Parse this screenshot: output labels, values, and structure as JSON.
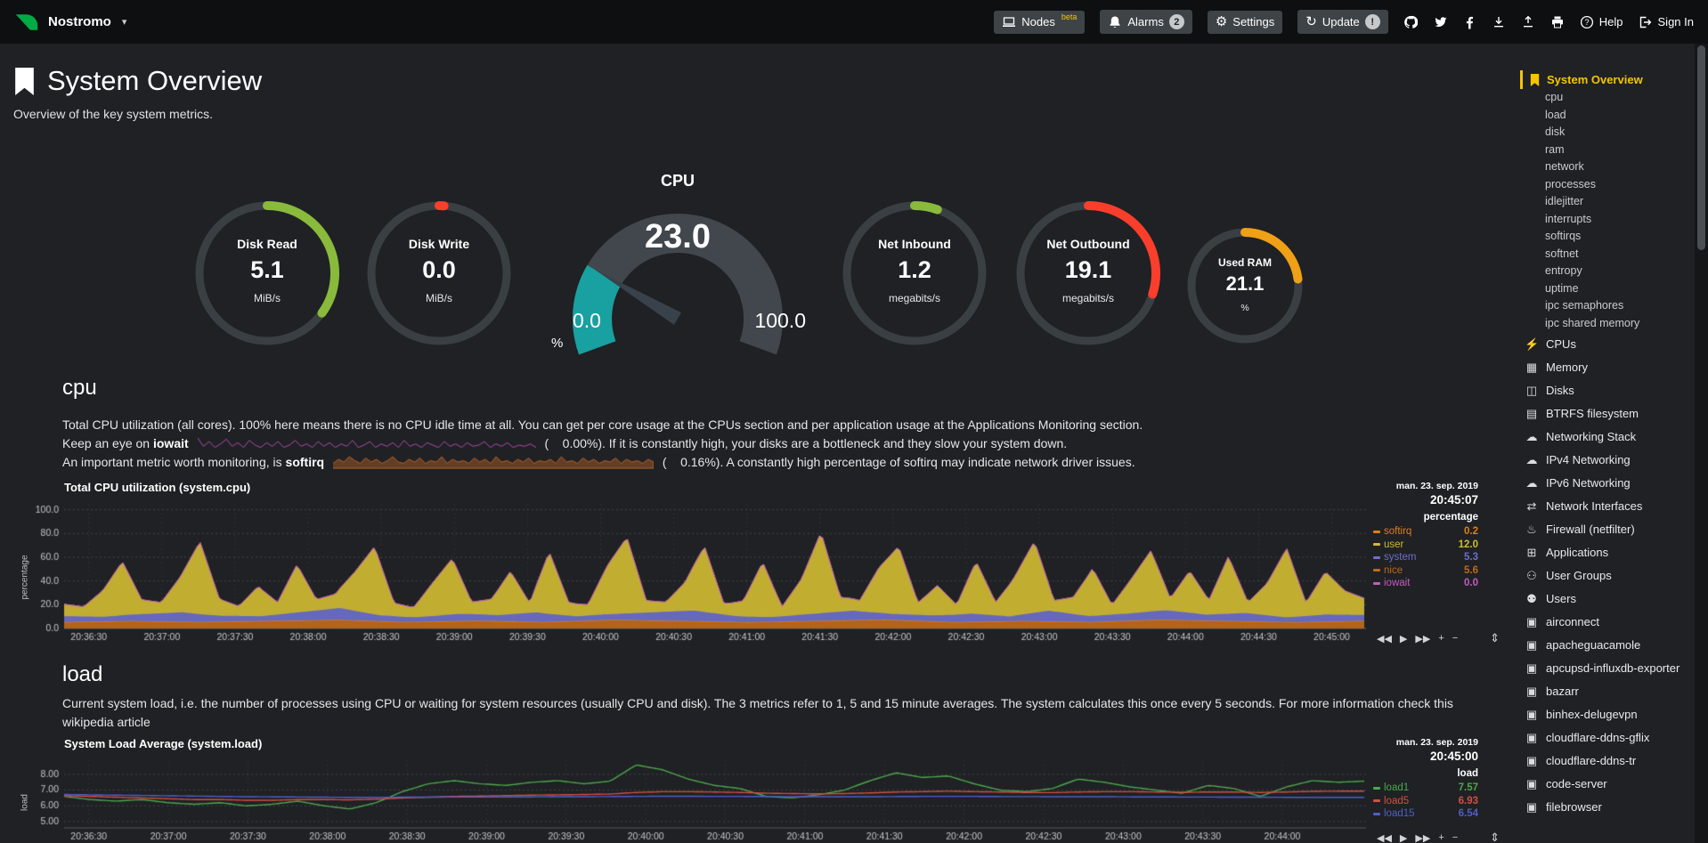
{
  "topbar": {
    "brand": "Nostromo",
    "nodes_label": "Nodes",
    "nodes_badge": "beta",
    "alarms_label": "Alarms",
    "alarms_count": "2",
    "settings_label": "Settings",
    "update_label": "Update",
    "update_badge": "!",
    "help_label": "Help",
    "signin_label": "Sign In"
  },
  "icons": {
    "caret": "▾",
    "gear": "⚙",
    "update": "↻",
    "help": "?",
    "rewind": "◀◀",
    "play": "▶",
    "forward": "▶▶",
    "plus": "+",
    "minus": "−",
    "resize": "⇕"
  },
  "icon_glyphs": {
    "bolt": "⚡",
    "memory": "▦",
    "disk": "◫",
    "folder": "▤",
    "cloud": "☁",
    "port": "⇄",
    "fire": "♨",
    "apps": "⊞",
    "users": "⚇",
    "user": "⚉",
    "cube": "▣"
  },
  "header": {
    "title": "System Overview",
    "subtitle": "Overview of the key system metrics."
  },
  "colors": {
    "accent": "#f6c500",
    "ring_track": "#3a3f43",
    "gauge_track": "#41474c",
    "needle": "#39424b"
  },
  "gauges": {
    "disk_read": {
      "title": "Disk Read",
      "value": "5.1",
      "unit": "MiB/s",
      "fraction": 0.35,
      "color": "#89ba3c"
    },
    "disk_write": {
      "title": "Disk Write",
      "value": "0.0",
      "unit": "MiB/s",
      "fraction": 0.012,
      "color": "#fa3e2c"
    },
    "cpu": {
      "title": "CPU",
      "value": "23.0",
      "min": "0.0",
      "max": "100.0",
      "unit": "%",
      "fraction": 0.23,
      "color": "#19a0a0"
    },
    "net_in": {
      "title": "Net Inbound",
      "value": "1.2",
      "unit": "megabits/s",
      "fraction": 0.055,
      "color": "#89ba3c"
    },
    "net_out": {
      "title": "Net Outbound",
      "value": "19.1",
      "unit": "megabits/s",
      "fraction": 0.3,
      "color": "#fa3e2c"
    },
    "used_ram": {
      "title": "Used RAM",
      "value": "21.1",
      "unit": "%",
      "fraction": 0.23,
      "color": "#f0a017"
    }
  },
  "cpu_section": {
    "heading": "cpu",
    "p1": "Total CPU utilization (all cores). 100% here means there is no CPU idle time at all. You can get per core usage at the CPUs section and per application usage at the Applications Monitoring section.",
    "p2_pre": "Keep an eye on",
    "p2_bold": "iowait",
    "p2_post": "(    0.00%). If it is constantly high, your disks are a bottleneck and they slow your system down.",
    "p3_pre": "An important metric worth monitoring, is",
    "p3_bold": "softirq",
    "p3_post": "(    0.16%). A constantly high percentage of softirq may indicate network driver issues."
  },
  "load_section": {
    "heading": "load",
    "p1": "Current system load, i.e. the number of processes using CPU or waiting for system resources (usually CPU and disk). The 3 metrics refer to 1, 5 and 15 minute averages. The system calculates this once every 5 seconds. For more information check this wikipedia article"
  },
  "sidebar": {
    "selected": {
      "label": "System Overview"
    },
    "sub_items": [
      "cpu",
      "load",
      "disk",
      "ram",
      "network",
      "processes",
      "idlejitter",
      "interrupts",
      "softirqs",
      "softnet",
      "entropy",
      "uptime",
      "ipc semaphores",
      "ipc shared memory"
    ],
    "sections": [
      {
        "label": "CPUs",
        "icon": "bolt"
      },
      {
        "label": "Memory",
        "icon": "memory"
      },
      {
        "label": "Disks",
        "icon": "disk"
      },
      {
        "label": "BTRFS filesystem",
        "icon": "folder"
      },
      {
        "label": "Networking Stack",
        "icon": "cloud"
      },
      {
        "label": "IPv4 Networking",
        "icon": "cloud"
      },
      {
        "label": "IPv6 Networking",
        "icon": "cloud"
      },
      {
        "label": "Network Interfaces",
        "icon": "port"
      },
      {
        "label": "Firewall (netfilter)",
        "icon": "fire"
      },
      {
        "label": "Applications",
        "icon": "apps"
      },
      {
        "label": "User Groups",
        "icon": "users"
      },
      {
        "label": "Users",
        "icon": "user"
      },
      {
        "label": "airconnect",
        "icon": "cube"
      },
      {
        "label": "apacheguacamole",
        "icon": "cube"
      },
      {
        "label": "apcupsd-influxdb-exporter",
        "icon": "cube"
      },
      {
        "label": "bazarr",
        "icon": "cube"
      },
      {
        "label": "binhex-delugevpn",
        "icon": "cube"
      },
      {
        "label": "cloudflare-ddns-gflix",
        "icon": "cube"
      },
      {
        "label": "cloudflare-ddns-tr",
        "icon": "cube"
      },
      {
        "label": "code-server",
        "icon": "cube"
      },
      {
        "label": "filebrowser",
        "icon": "cube"
      }
    ]
  },
  "sparklines": [
    {
      "name": "iowait",
      "color": "#b24cb2",
      "fill": false,
      "values": [
        0.9,
        0.2,
        0.6,
        0.1,
        0.4,
        0.8,
        0.2,
        0.5,
        0.1,
        0.7,
        0.3,
        0.1,
        0.5,
        0.2,
        0.6,
        0.1,
        0.3,
        0.7,
        0.2,
        0.4,
        0.1,
        0.6,
        0.2,
        0.5,
        0.1,
        0.4,
        0.2,
        0.7,
        0.1,
        0.3,
        0.6,
        0.1,
        0.4,
        0.2,
        0.5,
        0.1,
        0.7,
        0.2,
        0.4,
        0.1,
        0.5,
        0.3,
        0.1,
        0.6,
        0.2,
        0.4,
        0.1,
        0.5,
        0.2,
        0.3,
        0.6,
        0.1,
        0.4,
        0.2,
        0.5,
        0.1,
        0.3,
        0.2,
        0.4,
        0.1
      ]
    },
    {
      "name": "softirq",
      "color": "#b5622b",
      "fill": true,
      "values": [
        0.3,
        0.6,
        0.4,
        0.8,
        0.5,
        0.3,
        0.7,
        0.4,
        0.6,
        0.3,
        0.5,
        0.8,
        0.4,
        0.3,
        0.6,
        0.4,
        0.7,
        0.3,
        0.5,
        0.4,
        0.8,
        0.3,
        0.6,
        0.4,
        0.5,
        0.3,
        0.7,
        0.4,
        0.6,
        0.3,
        0.8,
        0.4,
        0.5,
        0.3,
        0.6,
        0.4,
        0.7,
        0.3,
        0.5,
        0.4,
        0.6,
        0.3,
        0.8,
        0.4,
        0.5,
        0.3,
        0.7,
        0.4,
        0.6,
        0.3,
        0.5,
        0.4,
        0.7,
        0.3,
        0.6,
        0.4,
        0.5,
        0.3,
        0.6,
        0.4
      ]
    }
  ],
  "chart_data": [
    {
      "id": "system.cpu",
      "type": "area",
      "title": "Total CPU utilization (system.cpu)",
      "ylabel": "percentage",
      "date": "man. 23. sep. 2019",
      "time": "20:45:07",
      "legend_header": "percentage",
      "ylim": [
        0,
        105
      ],
      "yticks": [
        0,
        20,
        40,
        60,
        80,
        100
      ],
      "ytick_labels": [
        "0.0",
        "20.0",
        "40.0",
        "60.0",
        "80.0",
        "100.0"
      ],
      "xspan": 0.975,
      "xticks": [
        "20:36:30",
        "20:37:00",
        "20:37:30",
        "20:38:00",
        "20:38:30",
        "20:39:00",
        "20:39:30",
        "20:40:00",
        "20:40:30",
        "20:41:00",
        "20:41:30",
        "20:42:00",
        "20:42:30",
        "20:43:00",
        "20:43:30",
        "20:44:00",
        "20:44:30",
        "20:45:00"
      ],
      "stack_order": [
        3,
        0,
        2,
        1,
        4
      ],
      "series": [
        {
          "name": "softirq",
          "color": "#df7e1e",
          "legend_value": "0.2",
          "values": [
            0.4,
            0.3,
            0.5,
            0.3,
            0.4,
            0.6,
            0.3,
            0.4,
            0.3,
            0.5,
            0.4,
            0.3,
            0.5,
            0.4,
            0.3,
            0.4
          ]
        },
        {
          "name": "user",
          "color": "#cfbb33",
          "legend_value": "12.0",
          "values": [
            10,
            8,
            22,
            45,
            12,
            9,
            30,
            61,
            14,
            8,
            25,
            10,
            40,
            9,
            12,
            33,
            57,
            11,
            8,
            28,
            47,
            10,
            13,
            36,
            8,
            52,
            11,
            9,
            41,
            64,
            10,
            8,
            24,
            55,
            9,
            13,
            46,
            8,
            30,
            68,
            12,
            9,
            38,
            57,
            10,
            25,
            8,
            44,
            11,
            33,
            60,
            9,
            14,
            40,
            8,
            29,
            51,
            10,
            35,
            12,
            48,
            9,
            27,
            58,
            11,
            36,
            20,
            14
          ]
        },
        {
          "name": "system",
          "color": "#6d6fc9",
          "legend_value": "5.3",
          "values": [
            5,
            4,
            6,
            8,
            5,
            4,
            7,
            10,
            5,
            4,
            6,
            5,
            8,
            4,
            5,
            7,
            9,
            5,
            4,
            6,
            8,
            5,
            5,
            7,
            4,
            9,
            5,
            6,
            8,
            5,
            7,
            4,
            6,
            5
          ]
        },
        {
          "name": "nice",
          "color": "#be6a1a",
          "legend_value": "5.6",
          "values": [
            5,
            6,
            5,
            6,
            7,
            5,
            6,
            5,
            7,
            6,
            5,
            6,
            7,
            5,
            6,
            5,
            7,
            6,
            5,
            6
          ]
        },
        {
          "name": "iowait",
          "color": "#c55bc0",
          "legend_value": "0.0",
          "values": [
            0,
            0.2,
            0,
            0,
            0.5,
            0,
            0.1,
            0,
            0,
            0.3,
            0,
            0,
            0.2,
            0,
            0,
            0.4,
            0,
            0.1,
            0,
            0,
            0.3,
            0,
            0,
            0
          ]
        }
      ]
    },
    {
      "id": "system.load",
      "type": "line",
      "title": "System Load Average (system.load)",
      "ylabel": "load",
      "date": "man. 23. sep. 2019",
      "time": "20:45:00",
      "legend_header": "load",
      "ylim": [
        4.6,
        8.9
      ],
      "yticks": [
        5,
        6,
        7,
        8
      ],
      "ytick_labels": [
        "5.00",
        "6.00",
        "7.00",
        "8.00"
      ],
      "xspan": 0.937,
      "xticks": [
        "20:36:30",
        "20:37:00",
        "20:37:30",
        "20:38:00",
        "20:38:30",
        "20:39:00",
        "20:39:30",
        "20:40:00",
        "20:40:30",
        "20:41:00",
        "20:41:30",
        "20:42:00",
        "20:42:30",
        "20:43:00",
        "20:43:30",
        "20:44:00"
      ],
      "series": [
        {
          "name": "load1",
          "color": "#4da74d",
          "legend_value": "7.57",
          "values": [
            6.6,
            6.4,
            6.3,
            6.4,
            6.2,
            6.1,
            6.2,
            6.0,
            6.1,
            6.3,
            6.0,
            5.8,
            6.2,
            6.9,
            7.4,
            7.6,
            7.4,
            7.3,
            7.5,
            7.6,
            7.4,
            7.57,
            8.6,
            8.3,
            7.7,
            7.3,
            7.1,
            6.6,
            6.5,
            6.7,
            7.0,
            7.6,
            8.1,
            7.8,
            7.9,
            7.4,
            7.0,
            6.9,
            7.1,
            7.7,
            7.5,
            7.2,
            7.0,
            6.8,
            7.3,
            7.1,
            6.6,
            7.2,
            7.6,
            7.5,
            7.57
          ]
        },
        {
          "name": "load5",
          "color": "#d54f44",
          "legend_value": "6.93",
          "values": [
            6.65,
            6.6,
            6.55,
            6.5,
            6.45,
            6.4,
            6.4,
            6.35,
            6.35,
            6.4,
            6.4,
            6.38,
            6.42,
            6.5,
            6.55,
            6.6,
            6.62,
            6.65,
            6.68,
            6.7,
            6.72,
            6.75,
            6.85,
            6.9,
            6.9,
            6.88,
            6.85,
            6.8,
            6.78,
            6.76,
            6.78,
            6.82,
            6.88,
            6.9,
            6.93,
            6.9,
            6.88,
            6.85,
            6.84,
            6.88,
            6.9,
            6.9,
            6.88,
            6.86,
            6.88,
            6.88,
            6.85,
            6.88,
            6.92,
            6.93,
            6.93
          ]
        },
        {
          "name": "load15",
          "color": "#4f5fc9",
          "legend_value": "6.54",
          "values": [
            6.72,
            6.7,
            6.68,
            6.66,
            6.64,
            6.62,
            6.6,
            6.58,
            6.57,
            6.56,
            6.55,
            6.54,
            6.54,
            6.55,
            6.55,
            6.56,
            6.56,
            6.57,
            6.57,
            6.58,
            6.58,
            6.59,
            6.6,
            6.61,
            6.61,
            6.6,
            6.6,
            6.59,
            6.58,
            6.58,
            6.58,
            6.58,
            6.59,
            6.6,
            6.6,
            6.6,
            6.59,
            6.59,
            6.58,
            6.58,
            6.58,
            6.57,
            6.57,
            6.56,
            6.56,
            6.55,
            6.55,
            6.54,
            6.54,
            6.54,
            6.54
          ]
        }
      ]
    }
  ]
}
